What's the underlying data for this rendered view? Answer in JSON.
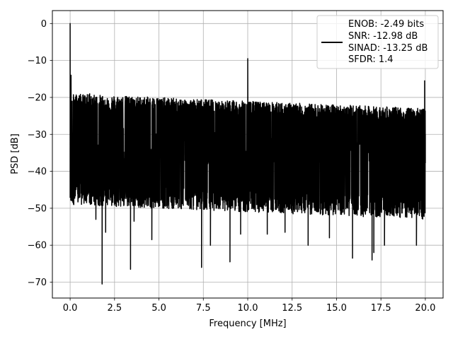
{
  "chart_data": {
    "type": "line",
    "xlabel": "Frequency [MHz]",
    "ylabel": "PSD [dB]",
    "xlim": [
      -1.0,
      21.0
    ],
    "ylim": [
      -74.3,
      3.5
    ],
    "xticks": [
      0.0,
      2.5,
      5.0,
      7.5,
      10.0,
      12.5,
      15.0,
      17.5,
      20.0
    ],
    "xtick_labels": [
      "0.0",
      "2.5",
      "5.0",
      "7.5",
      "10.0",
      "12.5",
      "15.0",
      "17.5",
      "20.0"
    ],
    "yticks": [
      0,
      -10,
      -20,
      -30,
      -40,
      -50,
      -60,
      -70
    ],
    "ytick_labels": [
      "0",
      "−10",
      "−20",
      "−30",
      "−40",
      "−50",
      "−60",
      "−70"
    ],
    "grid": true,
    "legend_position": "top-right",
    "legend_lines": [
      "ENOB: -2.49 bits",
      "SNR: -12.98 dB",
      "SINAD: -13.25 dB",
      "SFDR: 1.4"
    ],
    "series": [
      {
        "color": "#000000",
        "noise_floor_db": -33,
        "noise_upper_db": [
          -21,
          -25
        ],
        "noise_lower_db": [
          -46,
          -50
        ],
        "points": [
          {
            "x": 0.0,
            "y": 0.0
          },
          {
            "x": 0.05,
            "y": -14
          },
          {
            "x": 0.2,
            "y": -20
          },
          {
            "x": 1.1,
            "y": -19
          },
          {
            "x": 1.45,
            "y": -53
          },
          {
            "x": 1.8,
            "y": -70.5
          },
          {
            "x": 2.0,
            "y": -56.5
          },
          {
            "x": 2.7,
            "y": -22
          },
          {
            "x": 3.4,
            "y": -66.5
          },
          {
            "x": 3.6,
            "y": -53.5
          },
          {
            "x": 4.0,
            "y": -22
          },
          {
            "x": 4.6,
            "y": -58.5
          },
          {
            "x": 6.9,
            "y": -22
          },
          {
            "x": 7.4,
            "y": -66
          },
          {
            "x": 7.9,
            "y": -60
          },
          {
            "x": 9.0,
            "y": -64.5
          },
          {
            "x": 9.6,
            "y": -57
          },
          {
            "x": 10.0,
            "y": -9.5
          },
          {
            "x": 11.1,
            "y": -57
          },
          {
            "x": 12.1,
            "y": -56.5
          },
          {
            "x": 13.4,
            "y": -60
          },
          {
            "x": 14.6,
            "y": -58
          },
          {
            "x": 15.9,
            "y": -63.5
          },
          {
            "x": 17.0,
            "y": -64
          },
          {
            "x": 17.1,
            "y": -62
          },
          {
            "x": 17.7,
            "y": -60
          },
          {
            "x": 19.5,
            "y": -60
          },
          {
            "x": 19.96,
            "y": -15.5
          },
          {
            "x": 20.0,
            "y": -30
          }
        ]
      }
    ]
  }
}
